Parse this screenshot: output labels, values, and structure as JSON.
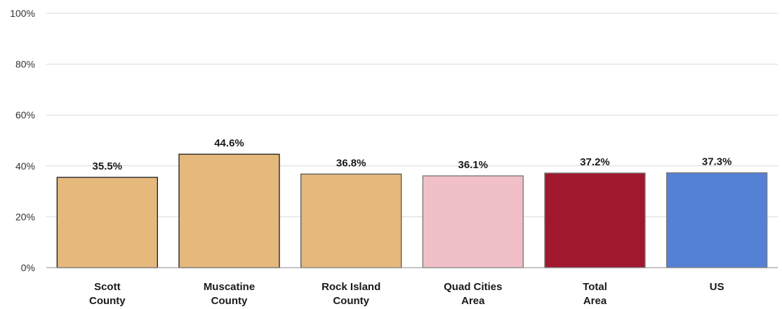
{
  "chart_data": {
    "type": "bar",
    "title": "",
    "xlabel": "",
    "ylabel": "",
    "ylim": [
      0,
      100
    ],
    "yticks": [
      "0%",
      "20%",
      "40%",
      "60%",
      "80%",
      "100%"
    ],
    "ytick_values": [
      0,
      20,
      40,
      60,
      80,
      100
    ],
    "grid": true,
    "legend": "none",
    "categories": [
      [
        "Scott",
        "County"
      ],
      [
        "Muscatine",
        "County"
      ],
      [
        "Rock Island",
        "County"
      ],
      [
        "Quad Cities",
        "Area"
      ],
      [
        "Total",
        "Area"
      ],
      [
        "US"
      ]
    ],
    "values": [
      35.5,
      44.6,
      36.8,
      36.1,
      37.2,
      37.3
    ],
    "data_labels": [
      "35.5%",
      "44.6%",
      "36.8%",
      "36.1%",
      "37.2%",
      "37.3%"
    ],
    "colors": [
      "#e5b97c",
      "#e5b97c",
      "#e5b97c",
      "#f0bfc7",
      "#a0182e",
      "#5581d4"
    ],
    "border_colors": [
      "#1a1a1a",
      "#1a1a1a",
      "#555555",
      "#777777",
      "#777777",
      "#777777"
    ]
  }
}
